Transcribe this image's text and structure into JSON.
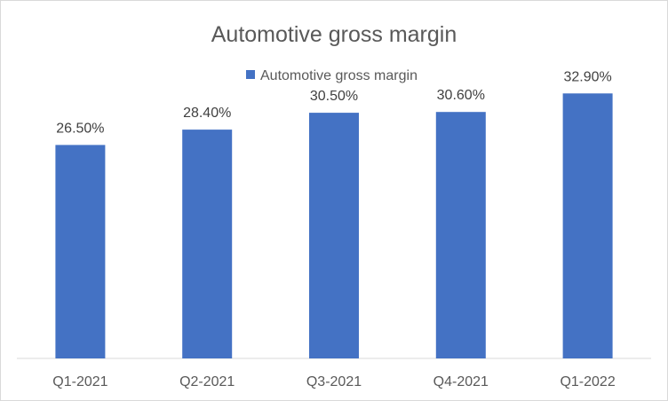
{
  "chart_data": {
    "type": "bar",
    "title": "Automotive gross margin",
    "xlabel": "",
    "ylabel": "",
    "categories": [
      "Q1-2021",
      "Q2-2021",
      "Q3-2021",
      "Q4-2021",
      "Q1-2022"
    ],
    "series": [
      {
        "name": "Automotive gross margin",
        "values": [
          26.5,
          28.4,
          30.5,
          30.6,
          32.9
        ],
        "labels": [
          "26.50%",
          "28.40%",
          "30.50%",
          "30.60%",
          "32.90%"
        ],
        "color": "#4472C4"
      }
    ],
    "ylim": [
      0,
      36
    ],
    "grid": false,
    "legend_position": "top-center"
  }
}
